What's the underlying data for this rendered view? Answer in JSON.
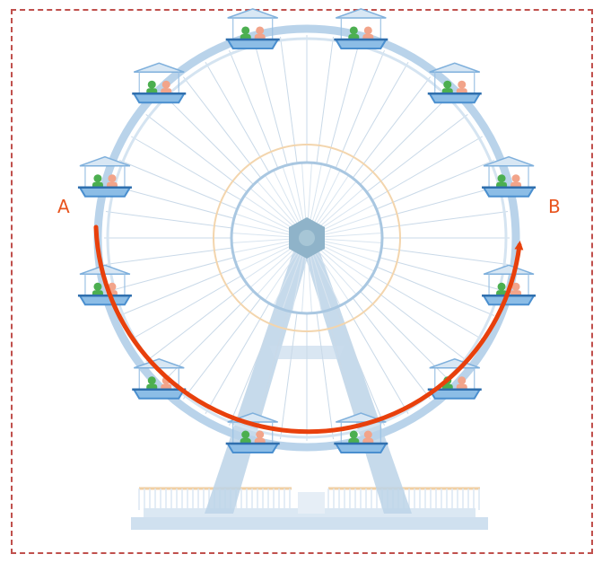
{
  "labels": {
    "start": "A",
    "end": "B"
  },
  "colors": {
    "frame": "#c0504d",
    "wheel": "#b9d3ea",
    "spokes": "#c9d9e8",
    "hub": "#8fb3c9",
    "inner_ring": "#f3d5ad",
    "arc": "#e8400c",
    "cabin_base": "#4a8fcf",
    "rider_green": "#4caf50",
    "rider_peach": "#f2a48a"
  },
  "cabins": {
    "count": 12
  }
}
